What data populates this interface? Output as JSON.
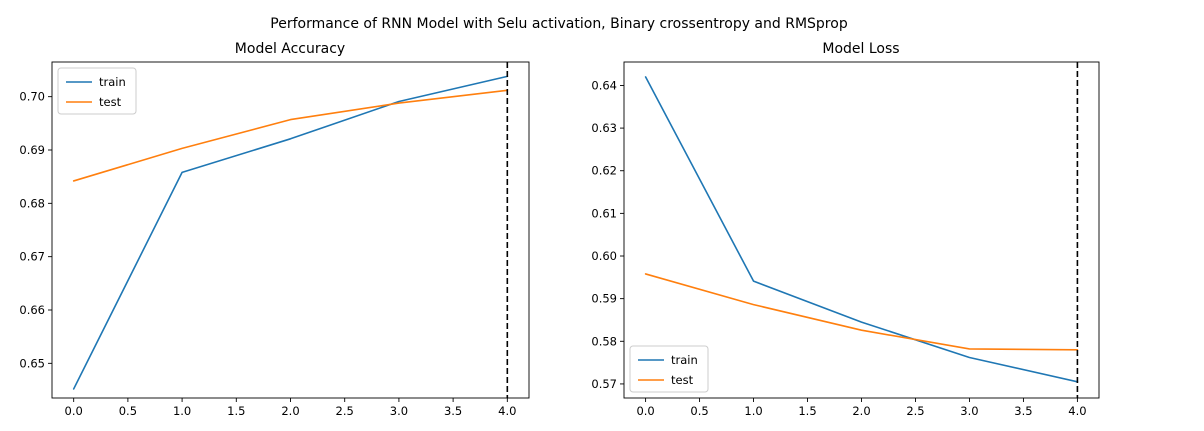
{
  "figure": {
    "suptitle": "Performance of RNN Model with Selu activation, Binary crossentropy and RMSprop"
  },
  "chart_data": [
    {
      "type": "line",
      "title": "Model Accuracy",
      "xlabel": "",
      "ylabel": "",
      "xlim": [
        -0.2,
        4.2
      ],
      "ylim": [
        0.6435,
        0.7065
      ],
      "xticks": [
        0.0,
        0.5,
        1.0,
        1.5,
        2.0,
        2.5,
        3.0,
        3.5,
        4.0
      ],
      "xtick_labels": [
        "0.0",
        "0.5",
        "1.0",
        "1.5",
        "2.0",
        "2.5",
        "3.0",
        "3.5",
        "4.0"
      ],
      "yticks": [
        0.65,
        0.66,
        0.67,
        0.68,
        0.69,
        0.7
      ],
      "ytick_labels": [
        "0.65",
        "0.66",
        "0.67",
        "0.68",
        "0.69",
        "0.70"
      ],
      "x": [
        0,
        1,
        2,
        3,
        4
      ],
      "series": [
        {
          "name": "train",
          "color": "#1f77b4",
          "values": [
            0.6452,
            0.6858,
            0.6921,
            0.6991,
            0.7038
          ]
        },
        {
          "name": "test",
          "color": "#ff7f0e",
          "values": [
            0.6842,
            0.6903,
            0.6957,
            0.6988,
            0.7012
          ]
        }
      ],
      "vline": {
        "x": 4,
        "style": "dashed",
        "color": "#000000"
      },
      "legend": "top-left",
      "grid": false
    },
    {
      "type": "line",
      "title": "Model Loss",
      "xlabel": "",
      "ylabel": "",
      "xlim": [
        -0.2,
        4.2
      ],
      "ylim": [
        0.5667,
        0.6455
      ],
      "xticks": [
        0.0,
        0.5,
        1.0,
        1.5,
        2.0,
        2.5,
        3.0,
        3.5,
        4.0
      ],
      "xtick_labels": [
        "0.0",
        "0.5",
        "1.0",
        "1.5",
        "2.0",
        "2.5",
        "3.0",
        "3.5",
        "4.0"
      ],
      "yticks": [
        0.57,
        0.58,
        0.59,
        0.6,
        0.61,
        0.62,
        0.63,
        0.64
      ],
      "ytick_labels": [
        "0.57",
        "0.58",
        "0.59",
        "0.60",
        "0.61",
        "0.62",
        "0.63",
        "0.64"
      ],
      "x": [
        0,
        1,
        2,
        3,
        4
      ],
      "series": [
        {
          "name": "train",
          "color": "#1f77b4",
          "values": [
            0.642,
            0.5941,
            0.5845,
            0.5762,
            0.5705
          ]
        },
        {
          "name": "test",
          "color": "#ff7f0e",
          "values": [
            0.5958,
            0.5886,
            0.5826,
            0.5782,
            0.578
          ]
        }
      ],
      "vline": {
        "x": 4,
        "style": "dashed",
        "color": "#000000"
      },
      "legend": "bottom-left",
      "grid": false
    }
  ]
}
